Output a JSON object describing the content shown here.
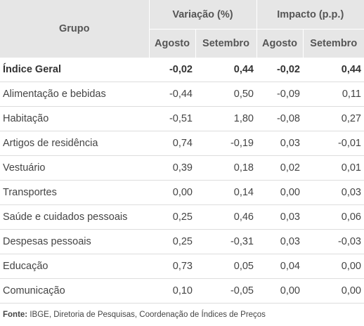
{
  "header": {
    "grupo": "Grupo",
    "variacao": "Variação (%)",
    "impacto": "Impacto (p.p.)",
    "agosto": "Agosto",
    "setembro": "Setembro"
  },
  "rows": [
    {
      "name": "Índice Geral",
      "var_ago": "-0,02",
      "var_set": "0,44",
      "imp_ago": "-0,02",
      "imp_set": "0,44"
    },
    {
      "name": "Alimentação e bebidas",
      "var_ago": "-0,44",
      "var_set": "0,50",
      "imp_ago": "-0,09",
      "imp_set": "0,11"
    },
    {
      "name": "Habitação",
      "var_ago": "-0,51",
      "var_set": "1,80",
      "imp_ago": "-0,08",
      "imp_set": "0,27"
    },
    {
      "name": "Artigos de residência",
      "var_ago": "0,74",
      "var_set": "-0,19",
      "imp_ago": "0,03",
      "imp_set": "-0,01"
    },
    {
      "name": "Vestuário",
      "var_ago": "0,39",
      "var_set": "0,18",
      "imp_ago": "0,02",
      "imp_set": "0,01"
    },
    {
      "name": "Transportes",
      "var_ago": "0,00",
      "var_set": "0,14",
      "imp_ago": "0,00",
      "imp_set": "0,03"
    },
    {
      "name": "Saúde e cuidados pessoais",
      "var_ago": "0,25",
      "var_set": "0,46",
      "imp_ago": "0,03",
      "imp_set": "0,06"
    },
    {
      "name": "Despesas pessoais",
      "var_ago": "0,25",
      "var_set": "-0,31",
      "imp_ago": "0,03",
      "imp_set": "-0,03"
    },
    {
      "name": "Educação",
      "var_ago": "0,73",
      "var_set": "0,05",
      "imp_ago": "0,04",
      "imp_set": "0,00"
    },
    {
      "name": "Comunicação",
      "var_ago": "0,10",
      "var_set": "-0,05",
      "imp_ago": "0,00",
      "imp_set": "0,00"
    }
  ],
  "source": {
    "label": "Fonte:",
    "text": " IBGE, Diretoria de Pesquisas, Coordenação de Índices de Preços"
  }
}
